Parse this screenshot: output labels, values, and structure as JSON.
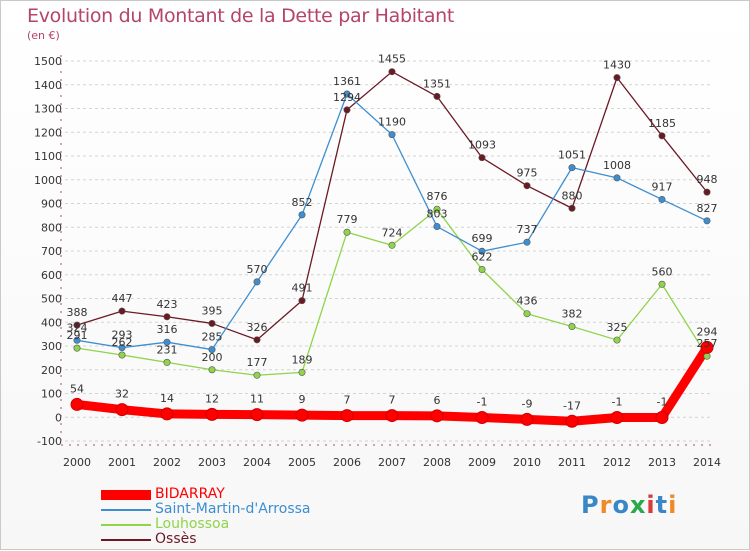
{
  "title": "Evolution du Montant de la Dette par Habitant",
  "subtitle": "(en €)",
  "logo": [
    "P",
    "r",
    "o",
    "x",
    "i",
    "t",
    "i"
  ],
  "chart_data": {
    "type": "line",
    "title": "Evolution du Montant de la Dette par Habitant",
    "ylabel": "(en €)",
    "x": [
      "2000",
      "2001",
      "2002",
      "2003",
      "2004",
      "2005",
      "2006",
      "2007",
      "2008",
      "2009",
      "2010",
      "2011",
      "2012",
      "2013",
      "2014"
    ],
    "ylim": [
      -100,
      1500
    ],
    "yticks": [
      -100,
      0,
      100,
      200,
      300,
      400,
      500,
      600,
      700,
      800,
      900,
      1000,
      1100,
      1200,
      1300,
      1400,
      1500
    ],
    "grid": "horizontal",
    "legend_position": "bottom-left",
    "series": [
      {
        "name": "Ossès",
        "color": "#6b1a24",
        "values": [
          388,
          447,
          423,
          395,
          326,
          491,
          1294,
          1455,
          1351,
          1093,
          975,
          880,
          1430,
          1185,
          948
        ]
      },
      {
        "name": "Louhossoa",
        "color": "#8fd44a",
        "values": [
          291,
          262,
          231,
          200,
          177,
          189,
          779,
          724,
          876,
          622,
          436,
          382,
          325,
          560,
          257
        ]
      },
      {
        "name": "Saint-Martin-d'Arrossa",
        "color": "#3d8fd1",
        "values": [
          324,
          293,
          316,
          285,
          570,
          852,
          1361,
          1190,
          803,
          699,
          737,
          1051,
          1008,
          917,
          827
        ]
      },
      {
        "name": "BIDARRAY",
        "color": "#ff0000",
        "values": [
          54,
          32,
          14,
          12,
          11,
          9,
          7,
          7,
          6,
          -1,
          -9,
          -17,
          -1,
          -1,
          294
        ]
      }
    ]
  }
}
